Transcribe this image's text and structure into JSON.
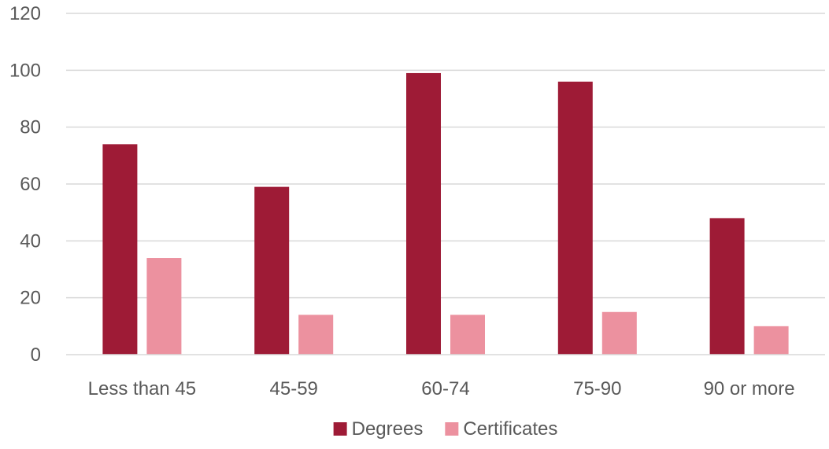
{
  "chart_data": {
    "type": "bar",
    "title": "",
    "xlabel": "",
    "ylabel": "",
    "categories": [
      "Less than 45",
      "45-59",
      "60-74",
      "75-90",
      "90 or more"
    ],
    "series": [
      {
        "name": "Degrees",
        "values": [
          74,
          59,
          99,
          96,
          48
        ],
        "color": "#9e1b36"
      },
      {
        "name": "Certificates",
        "values": [
          34,
          14,
          14,
          15,
          10
        ],
        "color": "#ec919f"
      }
    ],
    "ylim": [
      0,
      120
    ],
    "yticks": [
      0,
      20,
      40,
      60,
      80,
      100,
      120
    ],
    "grid": true,
    "legend_position": "bottom"
  }
}
